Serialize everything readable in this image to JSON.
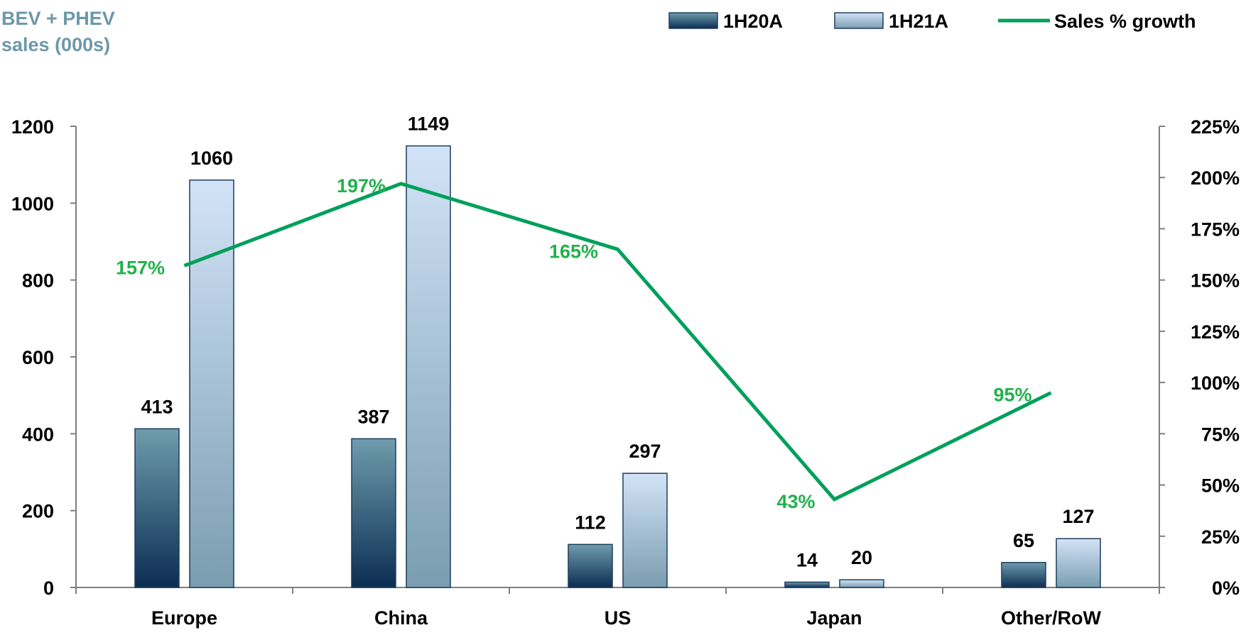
{
  "chart_data": {
    "type": "bar",
    "title": "",
    "ylabel_lines": [
      "BEV + PHEV",
      "sales (000s)"
    ],
    "categories": [
      "Europe",
      "China",
      "US",
      "Japan",
      "Other/RoW"
    ],
    "series": [
      {
        "name": "1H20A",
        "type": "bar",
        "axis": "left",
        "values": [
          413,
          387,
          112,
          14,
          65
        ],
        "labels": [
          "413",
          "387",
          "112",
          "14",
          "65"
        ]
      },
      {
        "name": "1H21A",
        "type": "bar",
        "axis": "left",
        "values": [
          1060,
          1149,
          297,
          20,
          127
        ],
        "labels": [
          "1060",
          "1149",
          "297",
          "20",
          "127"
        ]
      },
      {
        "name": "Sales % growth",
        "type": "line",
        "axis": "right",
        "values": [
          157,
          197,
          165,
          43,
          95
        ],
        "labels": [
          "157%",
          "197%",
          "165%",
          "43%",
          "95%"
        ]
      }
    ],
    "y_left": {
      "range": [
        0,
        1200
      ],
      "ticks": [
        "0",
        "200",
        "400",
        "600",
        "800",
        "1000",
        "1200"
      ]
    },
    "y_right": {
      "range": [
        0,
        225
      ],
      "ticks": [
        "0%",
        "25%",
        "50%",
        "75%",
        "100%",
        "125%",
        "150%",
        "175%",
        "200%",
        "225%"
      ]
    },
    "grid": false,
    "legend_position": "top-right"
  },
  "colors": {
    "bar_1h20a_dark": "#0b2d52",
    "bar_1h20a_light": "#6f9cad",
    "bar_1h21a_dark": "#7a9db0",
    "bar_1h21a_light": "#d3e3f7",
    "bar_stroke": "#1e3d5c",
    "growth_line": "#00a05a",
    "growth_label": "#22b14c",
    "title": "#6c98ab",
    "axis": "#7f7f7f"
  }
}
